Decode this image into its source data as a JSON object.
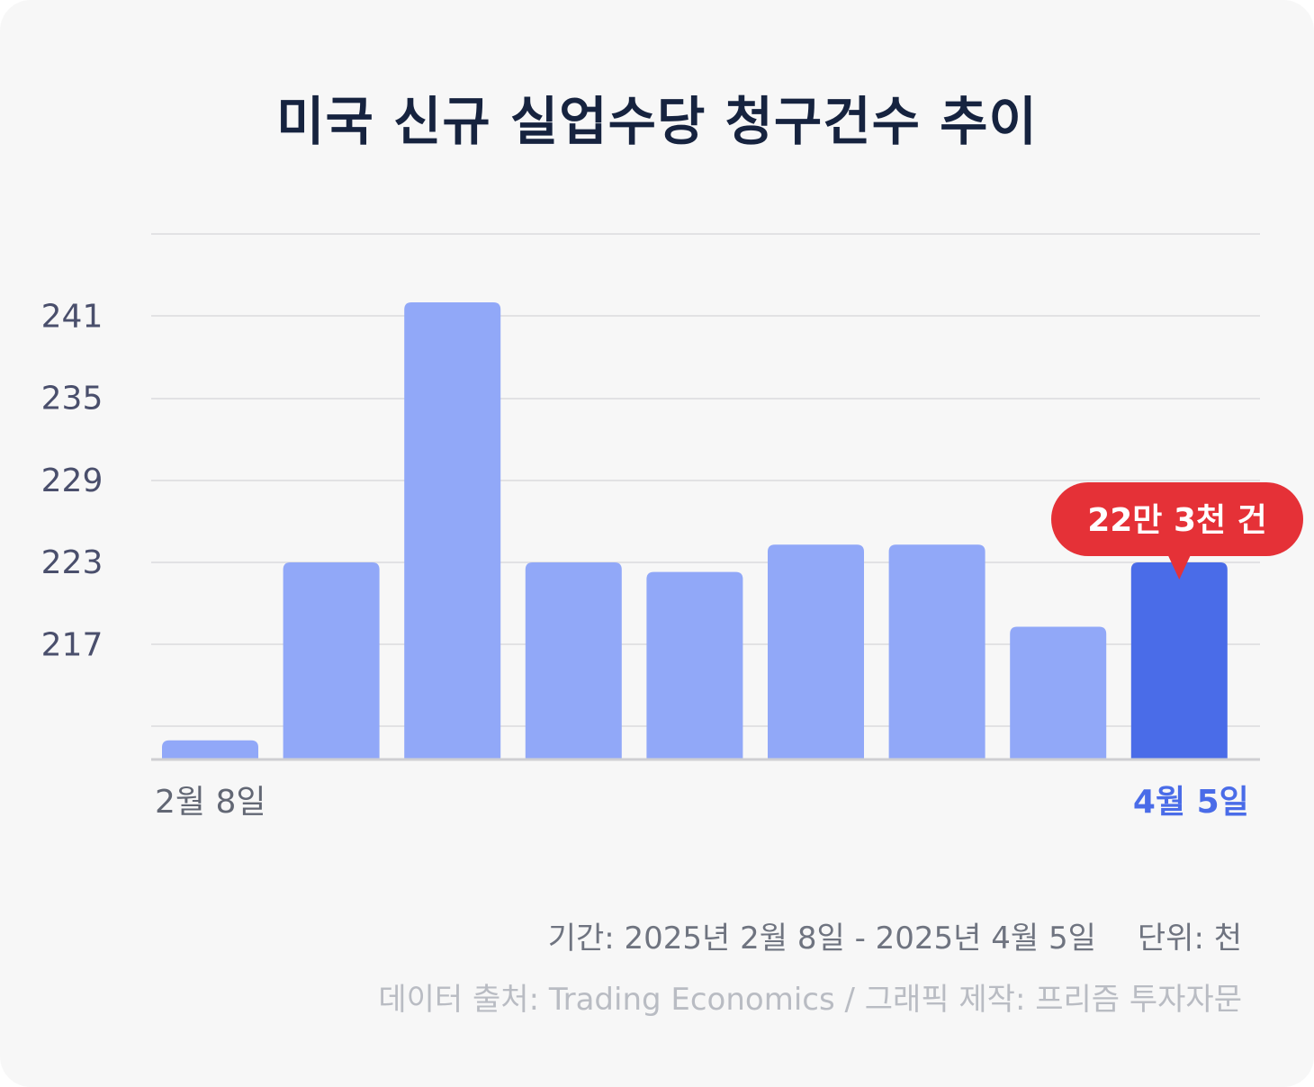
{
  "title": "미국 신규 실업수당 청구건수 추이",
  "chart_data": {
    "type": "bar",
    "title": "미국 신규 실업수당 청구건수 추이",
    "xlabel": "",
    "ylabel": "",
    "categories": [
      "2월 8일",
      "",
      "",
      "",
      "",
      "",
      "",
      "",
      "4월 5일"
    ],
    "values": [
      210,
      223,
      242,
      223,
      222.3,
      224.3,
      224.3,
      218.3,
      223
    ],
    "ylim": [
      208.6,
      247
    ],
    "yticks": [
      217,
      223,
      229,
      235,
      241
    ],
    "grid": true,
    "highlight_index": 8,
    "callout": "22만 3천 건",
    "colors": {
      "bar": "#91a8f8",
      "highlight_bar": "#4a6ce8",
      "callout": "#e53137",
      "tick_label": "#4a4f6c",
      "first_label": "#626774",
      "last_label": "#4a6ce8"
    }
  },
  "footer": {
    "period": "기간: 2025년 2월 8일 - 2025년 4월 5일",
    "unit": "단위: 천",
    "source": "데이터 출처: Trading Economics / 그래픽 제작: 프리즘 투자자문"
  }
}
